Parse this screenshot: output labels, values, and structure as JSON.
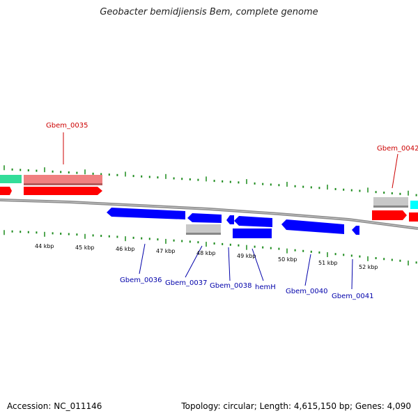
{
  "title": "Geobacter bemidjiensis Bem, complete genome",
  "footer": {
    "accession": "Accession: NC_011146",
    "summary": "Topology: circular; Length: 4,615,150 bp; Genes: 4,090"
  },
  "colors": {
    "forward_cds": "#ff0000",
    "forward_light": "#f08080",
    "reverse_cds": "#0000ff",
    "gene_grey": "#bdbdbd",
    "green_feature": "#33dd99",
    "cyan_feature": "#00ffff",
    "tick": "#1a8a1a",
    "forward_label": "#cc0000",
    "reverse_label": "#0000aa"
  },
  "ticks": [
    "44 kbp",
    "45 kbp",
    "46 kbp",
    "47 kbp",
    "48 kbp",
    "49 kbp",
    "50 kbp",
    "51 kbp",
    "52 kbp"
  ],
  "forward_labels": [
    "Gbem_0035",
    "Gbem_0042"
  ],
  "reverse_labels": [
    "Gbem_0036",
    "Gbem_0037",
    "Gbem_0038",
    "hemH",
    "Gbem_0040",
    "Gbem_0041"
  ]
}
